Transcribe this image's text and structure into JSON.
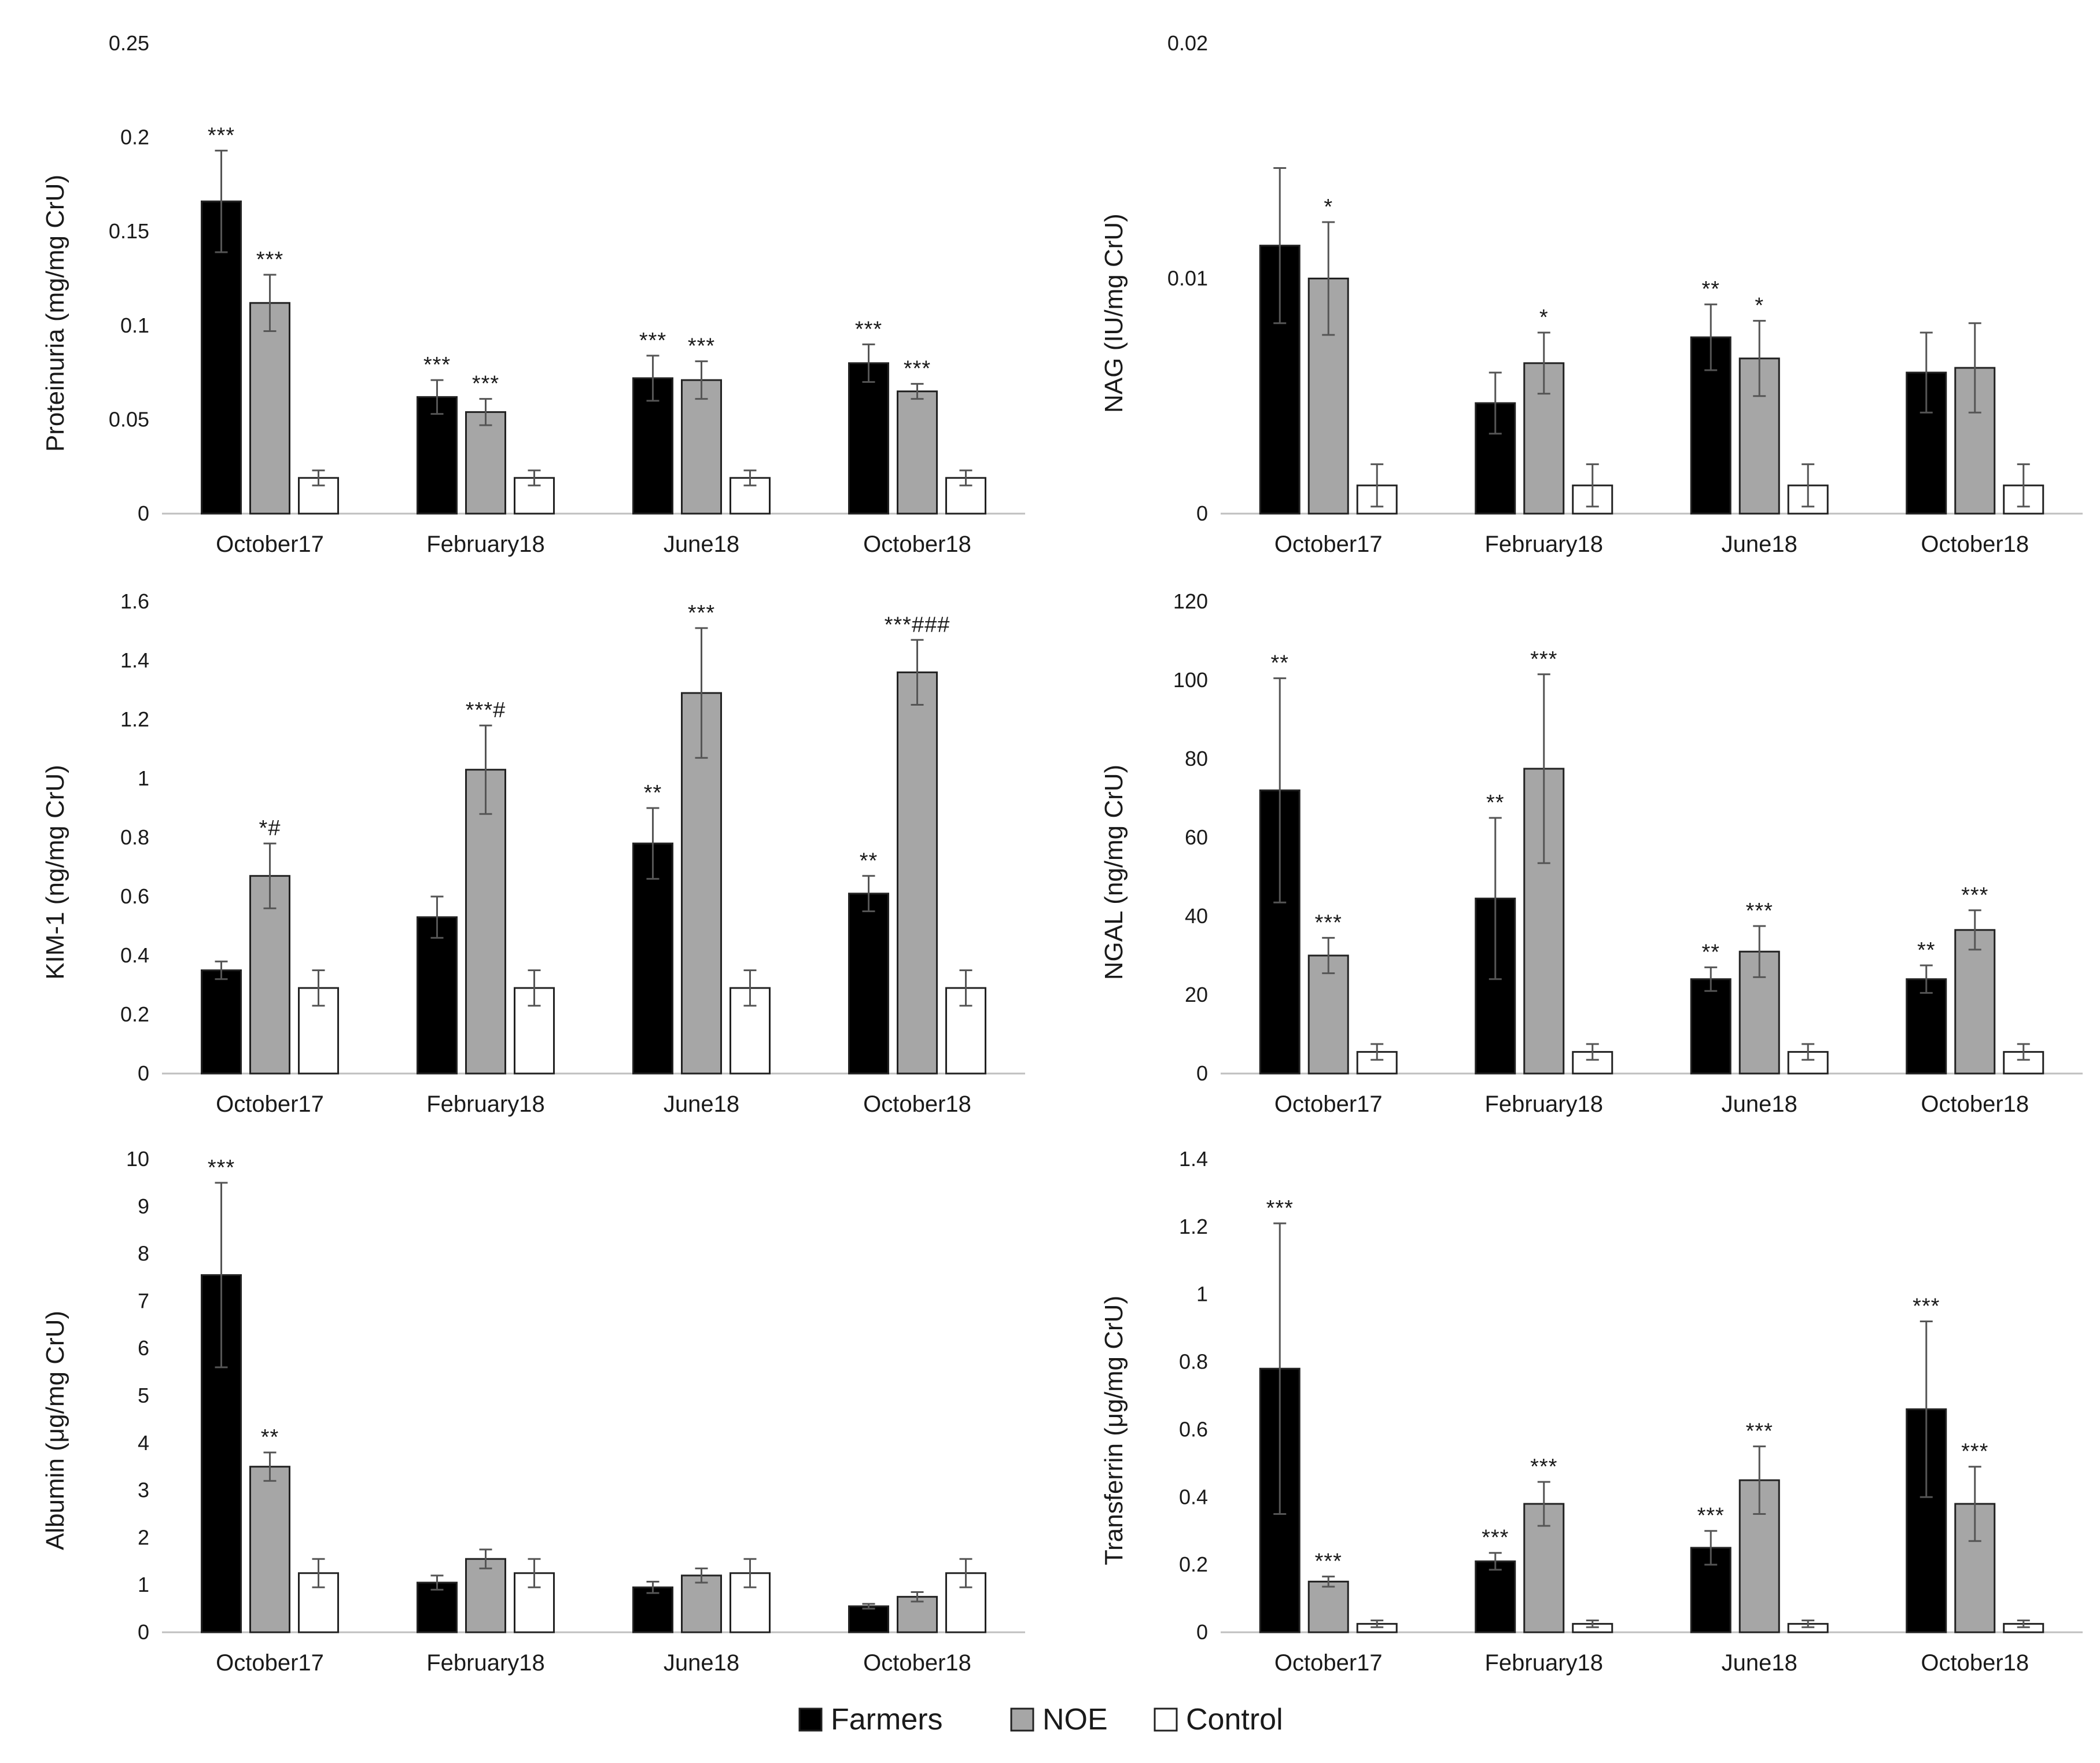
{
  "colors": {
    "Farmers": "#000000",
    "NOE": "#a6a6a6",
    "Control": "#ffffff",
    "outline": "#222222",
    "error_bar": "#555555",
    "axis": "#bfbfbf"
  },
  "legend": {
    "position": "bottom-center",
    "items": [
      "Farmers",
      "NOE",
      "Control"
    ]
  },
  "chart_data": [
    {
      "type": "bar",
      "ylabel": "Proteinuria (mg/mg CrU)",
      "categories": [
        "October17",
        "February18",
        "June18",
        "October18"
      ],
      "ylim": [
        0,
        0.25
      ],
      "yticks": [
        "0",
        "0.05",
        "0.1",
        "0.15",
        "0.2",
        "0.25"
      ],
      "series": [
        {
          "name": "Farmers",
          "values": [
            0.166,
            0.062,
            0.072,
            0.08
          ],
          "errors": [
            0.027,
            0.009,
            0.012,
            0.01
          ],
          "labels": [
            "***",
            "***",
            "***",
            "***"
          ]
        },
        {
          "name": "NOE",
          "values": [
            0.112,
            0.054,
            0.071,
            0.065
          ],
          "errors": [
            0.015,
            0.007,
            0.01,
            0.004
          ],
          "labels": [
            "***",
            "***",
            "***",
            "***"
          ]
        },
        {
          "name": "Control",
          "values": [
            0.019,
            0.019,
            0.019,
            0.019
          ],
          "errors": [
            0.004,
            0.004,
            0.004,
            0.004
          ],
          "labels": [
            "",
            "",
            "",
            ""
          ]
        }
      ]
    },
    {
      "type": "bar",
      "ylabel": "NAG (IU/mg CrU)",
      "categories": [
        "October17",
        "February18",
        "June18",
        "October18"
      ],
      "ylim": [
        0,
        0.02
      ],
      "yticks": [
        "0",
        "0.01",
        "0.02"
      ],
      "series": [
        {
          "name": "Farmers",
          "values": [
            0.0114,
            0.0047,
            0.0075,
            0.006
          ],
          "errors": [
            0.0033,
            0.0013,
            0.0014,
            0.0017
          ],
          "labels": [
            "",
            "",
            "**",
            ""
          ]
        },
        {
          "name": "NOE",
          "values": [
            0.01,
            0.0064,
            0.0066,
            0.0062
          ],
          "errors": [
            0.0024,
            0.0013,
            0.0016,
            0.0019
          ],
          "labels": [
            "*",
            "*",
            "*",
            ""
          ]
        },
        {
          "name": "Control",
          "values": [
            0.0012,
            0.0012,
            0.0012,
            0.0012
          ],
          "errors": [
            0.0009,
            0.0009,
            0.0009,
            0.0009
          ],
          "labels": [
            "",
            "",
            "",
            ""
          ]
        }
      ]
    },
    {
      "type": "bar",
      "ylabel": "KIM-1 (ng/mg CrU)",
      "categories": [
        "October17",
        "February18",
        "June18",
        "October18"
      ],
      "ylim": [
        0,
        1.6
      ],
      "yticks": [
        "0",
        "0.2",
        "0.4",
        "0.6",
        "0.8",
        "1",
        "1.2",
        "1.4",
        "1.6"
      ],
      "series": [
        {
          "name": "Farmers",
          "values": [
            0.35,
            0.53,
            0.78,
            0.61
          ],
          "errors": [
            0.03,
            0.07,
            0.12,
            0.06
          ],
          "labels": [
            "",
            "",
            "**",
            "**"
          ]
        },
        {
          "name": "NOE",
          "values": [
            0.67,
            1.03,
            1.29,
            1.36
          ],
          "errors": [
            0.11,
            0.15,
            0.22,
            0.11
          ],
          "labels": [
            "*#",
            "***#",
            "***",
            "***###"
          ]
        },
        {
          "name": "Control",
          "values": [
            0.29,
            0.29,
            0.29,
            0.29
          ],
          "errors": [
            0.06,
            0.06,
            0.06,
            0.06
          ],
          "labels": [
            "",
            "",
            "",
            ""
          ]
        }
      ]
    },
    {
      "type": "bar",
      "ylabel": "NGAL (ng/mg CrU)",
      "categories": [
        "October17",
        "February18",
        "June18",
        "October18"
      ],
      "ylim": [
        0,
        120
      ],
      "yticks": [
        "0",
        "20",
        "40",
        "60",
        "80",
        "100",
        "120"
      ],
      "series": [
        {
          "name": "Farmers",
          "values": [
            72,
            44.5,
            24,
            24
          ],
          "errors": [
            28.5,
            20.5,
            3,
            3.5
          ],
          "labels": [
            "**",
            "**",
            "**",
            "**"
          ]
        },
        {
          "name": "NOE",
          "values": [
            30,
            77.5,
            31,
            36.5
          ],
          "errors": [
            4.5,
            24,
            6.5,
            5
          ],
          "labels": [
            "***",
            "***",
            "***",
            "***"
          ]
        },
        {
          "name": "Control",
          "values": [
            5.5,
            5.5,
            5.5,
            5.5
          ],
          "errors": [
            2,
            2,
            2,
            2
          ],
          "labels": [
            "",
            "",
            "",
            ""
          ]
        }
      ]
    },
    {
      "type": "bar",
      "ylabel": "Albumin (μg/mg CrU)",
      "categories": [
        "October17",
        "February18",
        "June18",
        "October18"
      ],
      "ylim": [
        0,
        10
      ],
      "yticks": [
        "0",
        "1",
        "2",
        "3",
        "4",
        "5",
        "6",
        "7",
        "8",
        "9",
        "10"
      ],
      "series": [
        {
          "name": "Farmers",
          "values": [
            7.55,
            1.05,
            0.95,
            0.55
          ],
          "errors": [
            1.95,
            0.15,
            0.12,
            0.05
          ],
          "labels": [
            "***",
            "",
            "",
            ""
          ]
        },
        {
          "name": "NOE",
          "values": [
            3.5,
            1.55,
            1.2,
            0.75
          ],
          "errors": [
            0.3,
            0.2,
            0.15,
            0.1
          ],
          "labels": [
            "**",
            "",
            "",
            ""
          ]
        },
        {
          "name": "Control",
          "values": [
            1.25,
            1.25,
            1.25,
            1.25
          ],
          "errors": [
            0.3,
            0.3,
            0.3,
            0.3
          ],
          "labels": [
            "",
            "",
            "",
            ""
          ]
        }
      ]
    },
    {
      "type": "bar",
      "ylabel": "Transferrin (μg/mg CrU)",
      "categories": [
        "October17",
        "February18",
        "June18",
        "October18"
      ],
      "ylim": [
        0,
        1.4
      ],
      "yticks": [
        "0",
        "0.2",
        "0.4",
        "0.6",
        "0.8",
        "1",
        "1.2",
        "1.4"
      ],
      "series": [
        {
          "name": "Farmers",
          "values": [
            0.78,
            0.21,
            0.25,
            0.66
          ],
          "errors": [
            0.43,
            0.025,
            0.05,
            0.26
          ],
          "labels": [
            "***",
            "***",
            "***",
            "***"
          ]
        },
        {
          "name": "NOE",
          "values": [
            0.15,
            0.38,
            0.45,
            0.38
          ],
          "errors": [
            0.015,
            0.065,
            0.1,
            0.11
          ],
          "labels": [
            "***",
            "***",
            "***",
            "***"
          ]
        },
        {
          "name": "Control",
          "values": [
            0.025,
            0.025,
            0.025,
            0.025
          ],
          "errors": [
            0.01,
            0.01,
            0.01,
            0.01
          ],
          "labels": [
            "",
            "",
            "",
            ""
          ]
        }
      ]
    }
  ]
}
